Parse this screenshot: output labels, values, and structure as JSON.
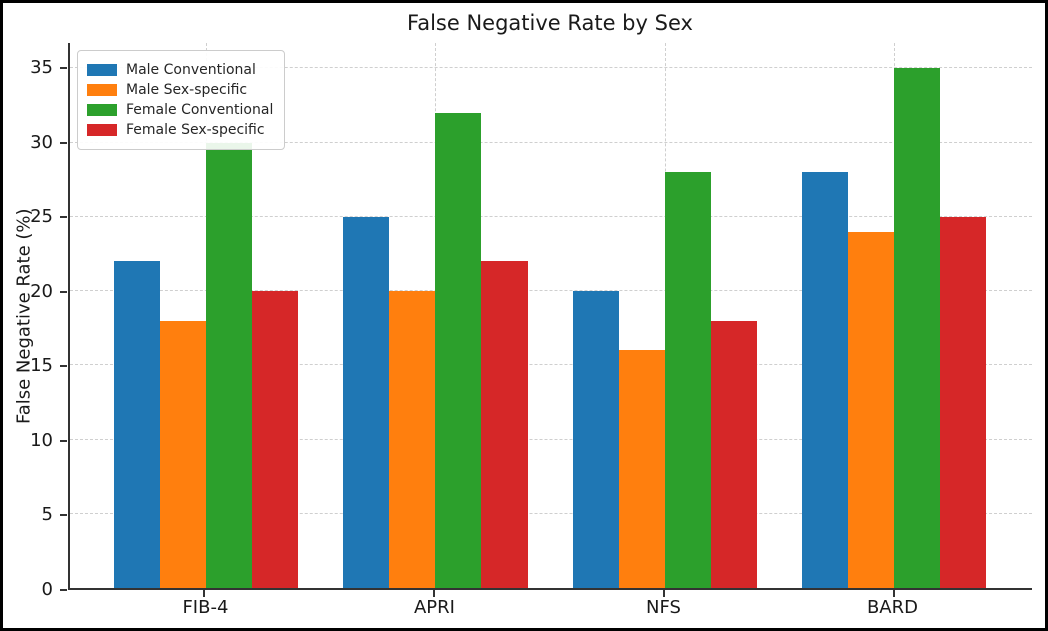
{
  "chart_data": {
    "type": "bar",
    "title": "False Negative Rate by Sex",
    "xlabel": "",
    "ylabel": "False Negative Rate (%)",
    "categories": [
      "FIB-4",
      "APRI",
      "NFS",
      "BARD"
    ],
    "series": [
      {
        "name": "Male Conventional",
        "color": "#1f77b4",
        "values": [
          22,
          25,
          20,
          28
        ]
      },
      {
        "name": "Male Sex-specific",
        "color": "#ff7f0e",
        "values": [
          18,
          20,
          16,
          24
        ]
      },
      {
        "name": "Female Conventional",
        "color": "#2ca02c",
        "values": [
          30,
          32,
          28,
          35
        ]
      },
      {
        "name": "Female Sex-specific",
        "color": "#d62728",
        "values": [
          20,
          22,
          18,
          25
        ]
      }
    ],
    "yticks": [
      0,
      5,
      10,
      15,
      20,
      25,
      30,
      35
    ],
    "ylim": [
      0,
      36.7
    ],
    "grid": true,
    "grid_style": "dashed",
    "legend_position": "upper-left"
  },
  "style": {
    "grid_color": "#cfcfcf",
    "spine_color": "#333333",
    "text_color": "#1a1a1a",
    "figure_border_color": "#000000",
    "background": "#ffffff"
  }
}
